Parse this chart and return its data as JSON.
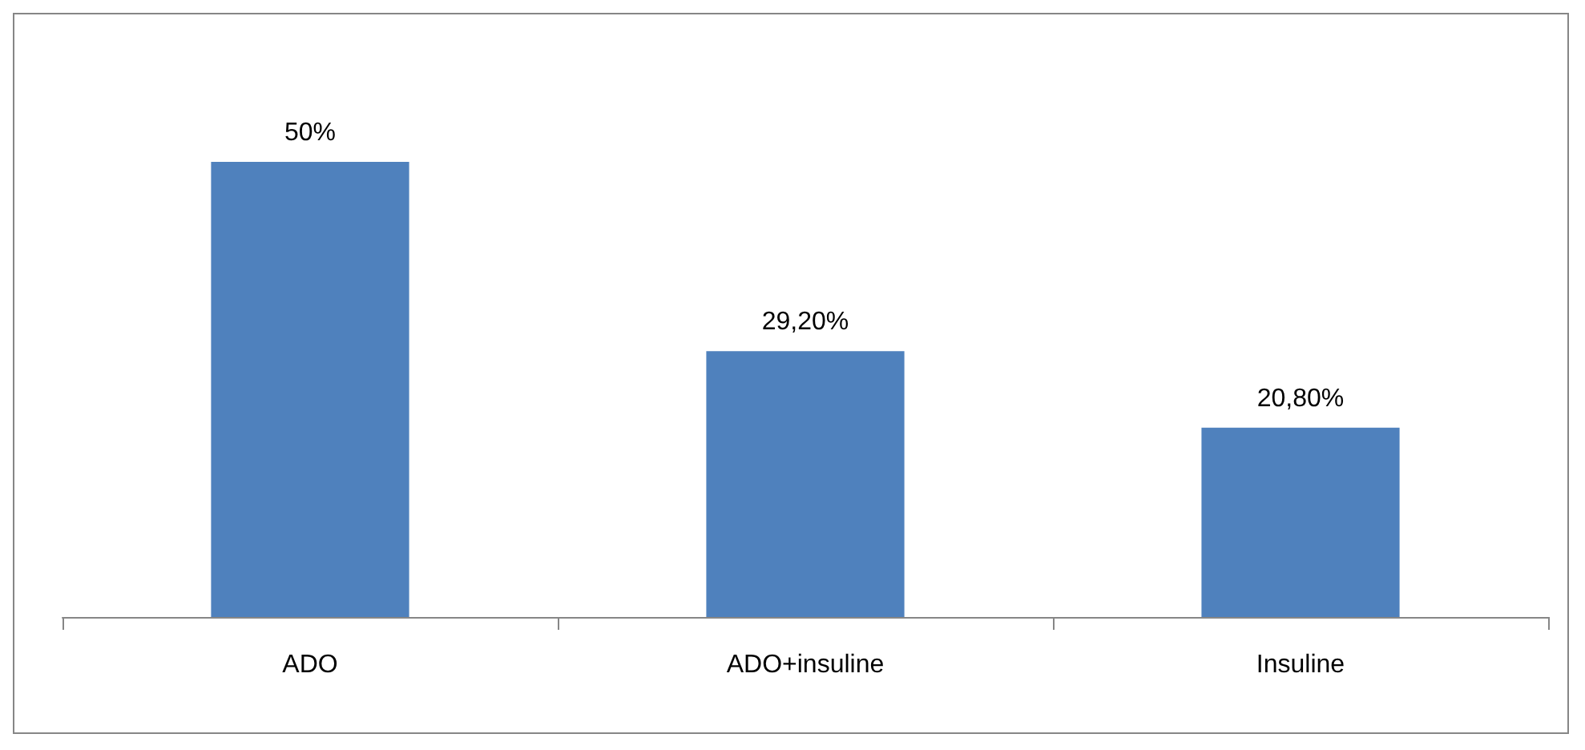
{
  "chart_data": {
    "type": "bar",
    "categories": [
      "ADO",
      "ADO+insuline",
      "Insuline"
    ],
    "values": [
      50,
      29.2,
      20.8
    ],
    "value_labels": [
      "50%",
      "29,20%",
      "20,80%"
    ],
    "color": "#4f81bd",
    "grid": false
  }
}
